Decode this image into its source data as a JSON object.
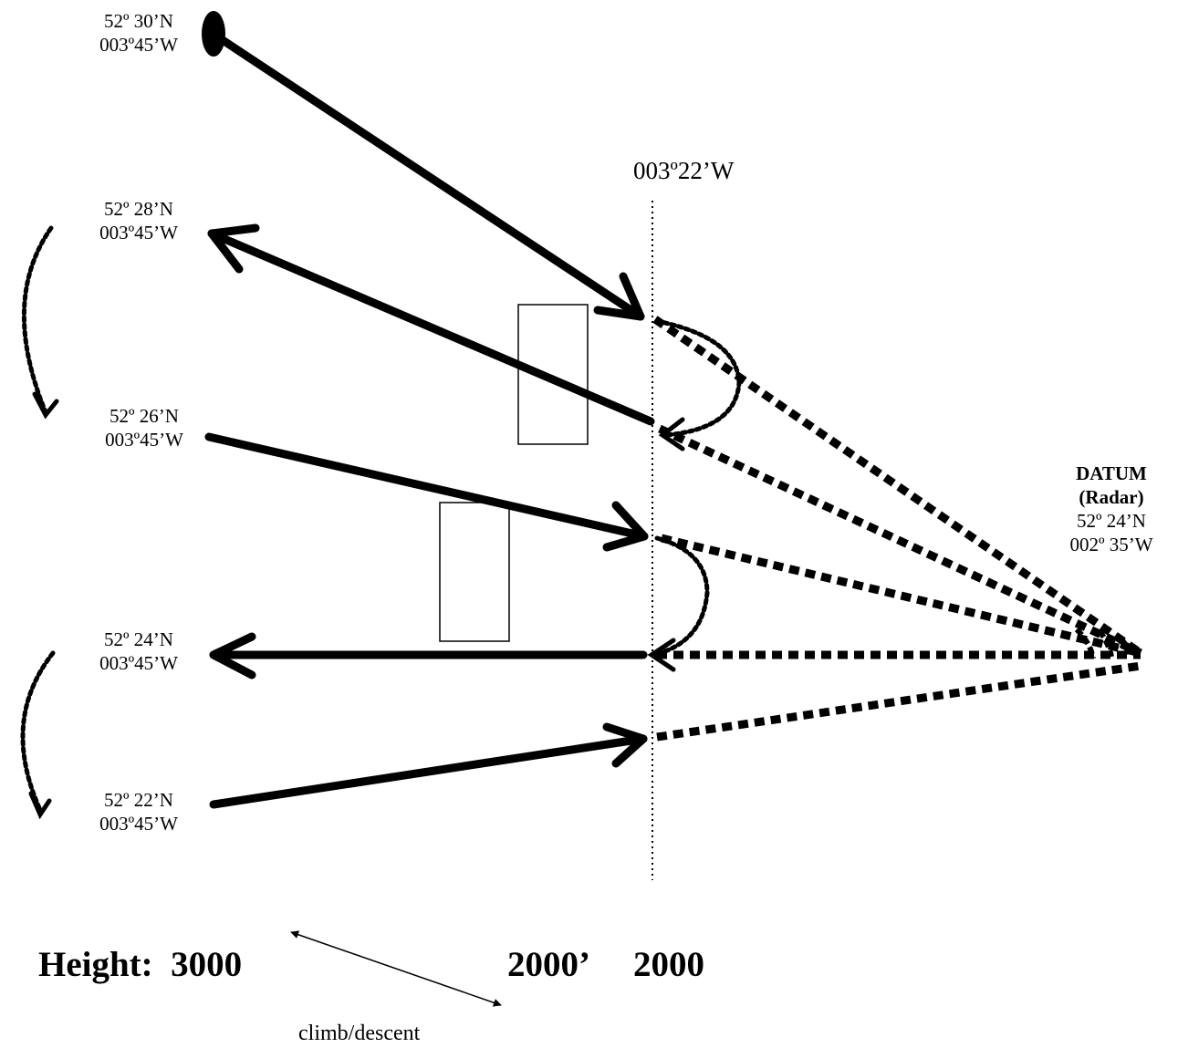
{
  "waypoints": [
    {
      "lat": "52º 30’N",
      "lon": "003º45’W"
    },
    {
      "lat": "52º 28’N",
      "lon": "003º45’W"
    },
    {
      "lat": "52º 26’N",
      "lon": "003º45’W"
    },
    {
      "lat": "52º 24’N",
      "lon": "003º45’W"
    },
    {
      "lat": "52º 22’N",
      "lon": "003º45’W"
    }
  ],
  "meridian_label": "003º22’W",
  "datum": {
    "title": "DATUM",
    "subtitle": "(Radar)",
    "lat": "52º 24’N",
    "lon": "002º 35’W"
  },
  "height": {
    "label": "Height:",
    "start_value": "3000",
    "mid_value": "2000’",
    "end_value": "2000"
  },
  "climb_label": "climb/descent",
  "colors": {
    "ink": "#000000",
    "background": "#ffffff"
  }
}
